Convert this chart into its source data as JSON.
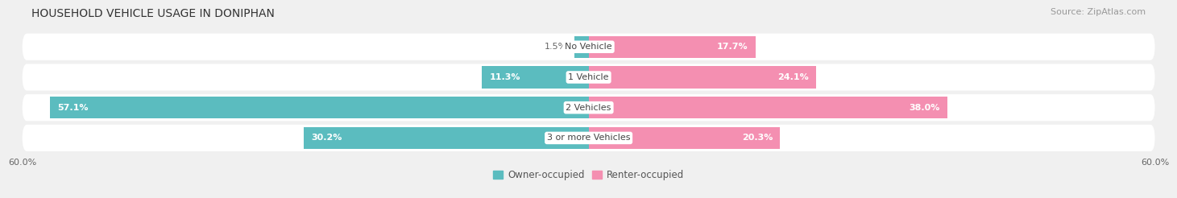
{
  "title": "HOUSEHOLD VEHICLE USAGE IN DONIPHAN",
  "source": "Source: ZipAtlas.com",
  "categories": [
    "No Vehicle",
    "1 Vehicle",
    "2 Vehicles",
    "3 or more Vehicles"
  ],
  "owner_values": [
    1.5,
    11.3,
    57.1,
    30.2
  ],
  "renter_values": [
    17.7,
    24.1,
    38.0,
    20.3
  ],
  "owner_color": "#5bbcbf",
  "renter_color": "#f48fb1",
  "owner_label": "Owner-occupied",
  "renter_label": "Renter-occupied",
  "axis_max": 60.0,
  "bg_color": "#f0f0f0",
  "row_bg_color": "#ffffff",
  "title_fontsize": 10,
  "source_fontsize": 8,
  "label_fontsize": 8,
  "category_fontsize": 8,
  "tick_fontsize": 8,
  "legend_fontsize": 8.5
}
